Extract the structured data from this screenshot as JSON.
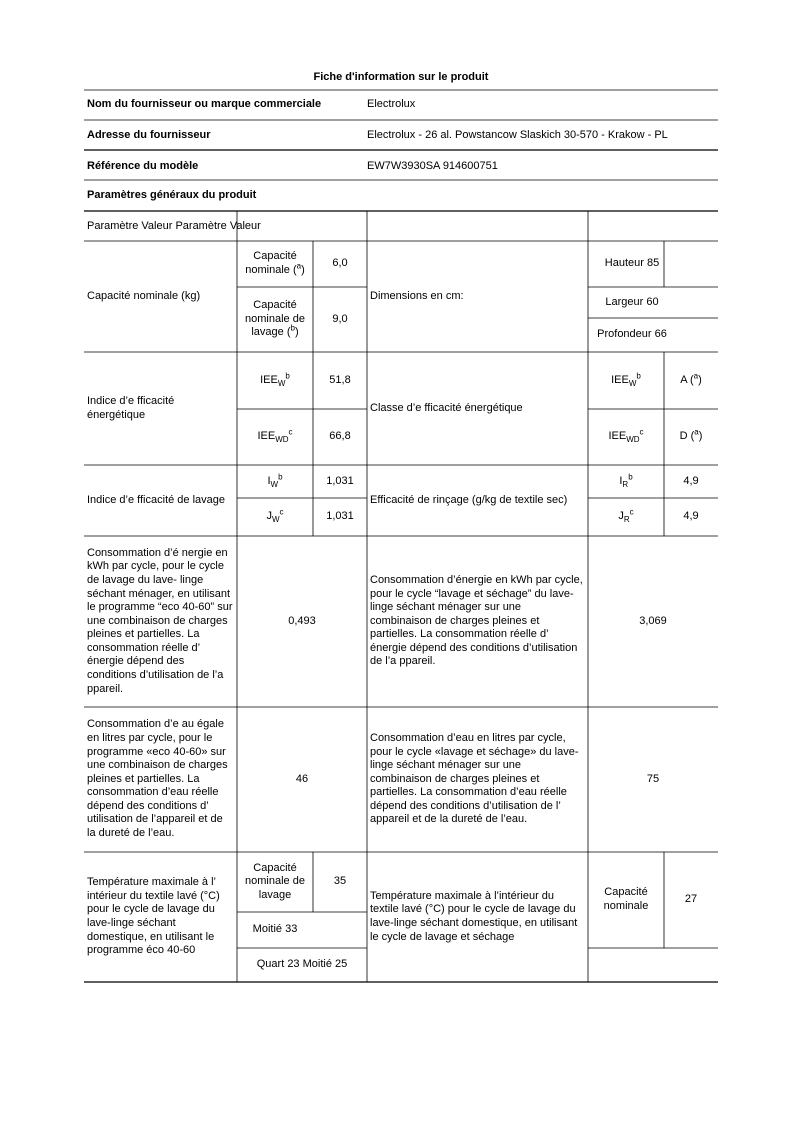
{
  "title": "Fiche d'information sur le produit",
  "info": [
    {
      "label": "Nom du fournisseur ou marque commerciale",
      "value": "Electrolux"
    },
    {
      "label": "Adresse du fournisseur",
      "value": "Electrolux - 26 al. Powstancow Slaskich 30-570 - Krakow - PL"
    },
    {
      "label": "Référence du modèle",
      "value": "EW7W3930SA 914600751"
    }
  ],
  "section": "Paramètres généraux du produit",
  "table": {
    "header": "Paramètre Valeur Paramètre Valeur",
    "capacity": {
      "label": "Capacité nominale (kg)",
      "rated": {
        "text": "Capacité nominale (",
        "sup": "a",
        "close": ")"
      },
      "rated_value": "6,0",
      "washing": {
        "text": "Capacité nominale de lavage (",
        "sup": "b",
        "close": ")"
      },
      "washing_value": "9,0",
      "dimensions": "Dimensions en cm:",
      "height": "Hauteur 85",
      "width": "Largeur 60",
      "depth": "Profondeur 66"
    },
    "energy_index": {
      "label": "Indice d’e fficacité énergétique",
      "iee_w": {
        "text": "IEE",
        "sub": "W",
        "sup": "b"
      },
      "iee_w_value": "51,8",
      "iee_wd": {
        "text": "IEE",
        "sub": "WD",
        "sup": "c"
      },
      "iee_wd_value": "66,8",
      "class_label": "Classe d’e fficacité énergétique",
      "class_w": {
        "text": "IEE",
        "sub": "W",
        "sup": "b"
      },
      "class_w_value": {
        "text": "A (",
        "sup": "a",
        "close": ")"
      },
      "class_wd": {
        "text": "IEE",
        "sub": "WD",
        "sup": "c"
      },
      "class_wd_value": {
        "text": "D (",
        "sup": "a",
        "close": ")"
      }
    },
    "washing_index": {
      "label": "Indice d’e fficacité de lavage",
      "i_w": {
        "text": "I",
        "sub": "W",
        "sup": "b"
      },
      "i_w_value": "1,031",
      "j_w": {
        "text": "J",
        "sub": "W",
        "sup": "c"
      },
      "j_w_value": "1,031",
      "rinse_label": "Efficacité de rinçage (g/kg de textile sec)",
      "i_r": {
        "text": "I",
        "sub": "R",
        "sup": "b"
      },
      "i_r_value": "4,9",
      "j_r": {
        "text": "J",
        "sub": "R",
        "sup": "c"
      },
      "j_r_value": "4,9"
    },
    "energy_consumption": {
      "label": "Consommation d’é nergie en kWh par cycle, pour le cycle de lavage du lave- linge séchant ménager, en utilisant le programme “eco 40-60” sur une combinaison de charges pleines et partielles. La consommation réelle d’ énergie dépend des conditions d’utilisation de l’a ppareil.",
      "value": "0,493",
      "label2": "Consommation d’énergie en kWh par cycle, pour le cycle “lavage et séchage” du lave-linge séchant ménager sur une combinaison de charges pleines et partielles. La consommation réelle d’ énergie dépend des conditions d’utilisation de l’a ppareil.",
      "value2": "3,069"
    },
    "water_consumption": {
      "label": "Consommation d’e au égale en litres par cycle, pour le programme «eco 40-60» sur une combinaison de charges pleines et partielles. La consommation d’eau réelle dépend des conditions d’ utilisation de l’appareil et de la dureté de l’eau.",
      "value": "46",
      "label2": "Consommation d’eau en litres par cycle, pour le cycle «lavage et séchage» du lave-linge séchant ménager sur une combinaison de charges pleines et partielles. La consommation d’eau réelle dépend des conditions d’utilisation de l’ appareil et de la dureté de l’eau.",
      "value2": "75"
    },
    "temperature": {
      "label": "Température maximale à l’ intérieur du textile lavé (°C) pour le cycle de lavage du lave-linge séchant domestique, en utilisant le programme éco 40-60",
      "rated": "Capacité nominale de lavage",
      "rated_value": "35",
      "half": "Moitié 33",
      "quarter": "Quart 23 Moitié 25",
      "label2": "Température maximale à l’intérieur du textile lavé (°C) pour le cycle de lavage du lave-linge séchant domestique, en utilisant le cycle de lavage et séchage",
      "rated2": "Capacité nominale",
      "rated2_value": "27"
    }
  }
}
